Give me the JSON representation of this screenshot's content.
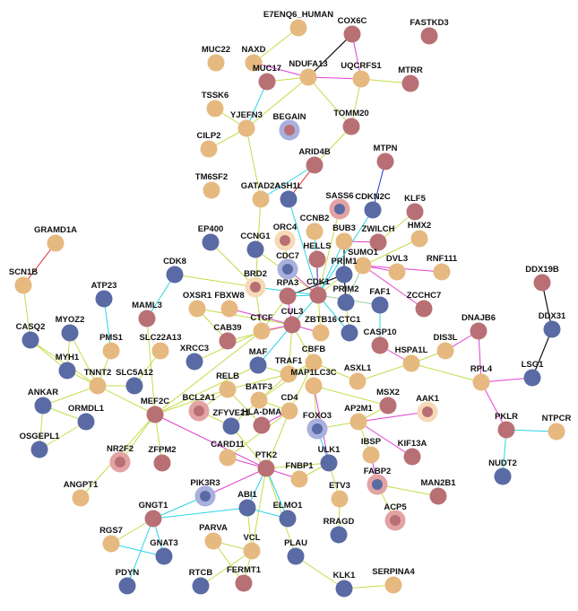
{
  "palette": {
    "tan": "#e6b980",
    "rose": "#b87074",
    "slate": "#5a6aa4",
    "ring_lilac": "#a9b0de",
    "ring_pink": "#e3a3a3",
    "ring_cream": "#f6d9b6",
    "edge_magenta": "#e040d0",
    "edge_cyan": "#2ad4e6",
    "edge_lime": "#c4dc4a",
    "edge_black": "#111111",
    "edge_red": "#dc2222",
    "edge_blue": "#2233cc",
    "edge_sage": "#9ecf9e"
  },
  "nodes": [
    {
      "id": "E7ENQ6_HUMAN",
      "label": "E7ENQ6_HUMAN",
      "color": "tan"
    },
    {
      "id": "COX6C",
      "label": "COX6C",
      "color": "rose"
    },
    {
      "id": "FASTKD3",
      "label": "FASTKD3",
      "color": "rose"
    },
    {
      "id": "NAXD",
      "label": "NAXD",
      "color": "tan"
    },
    {
      "id": "MUC22",
      "label": "MUC22",
      "color": "tan"
    },
    {
      "id": "MUC17",
      "label": "MUC17",
      "color": "rose"
    },
    {
      "id": "NDUFA13",
      "label": "NDUFA13",
      "color": "tan"
    },
    {
      "id": "UQCRFS1",
      "label": "UQCRFS1",
      "color": "tan"
    },
    {
      "id": "MTRR",
      "label": "MTRR",
      "color": "rose"
    },
    {
      "id": "TSSK6",
      "label": "TSSK6",
      "color": "tan"
    },
    {
      "id": "YJEFN3",
      "label": "YJEFN3",
      "color": "tan"
    },
    {
      "id": "BEGAIN",
      "label": "BEGAIN",
      "color": "rose",
      "ring": "ring_lilac"
    },
    {
      "id": "TOMM20",
      "label": "TOMM20",
      "color": "rose"
    },
    {
      "id": "CILP2",
      "label": "CILP2",
      "color": "tan"
    },
    {
      "id": "ARID4B",
      "label": "ARID4B",
      "color": "rose"
    },
    {
      "id": "MTPN",
      "label": "MTPN",
      "color": "rose"
    },
    {
      "id": "TM6SF2",
      "label": "TM6SF2",
      "color": "tan"
    },
    {
      "id": "GATAD2A",
      "label": "GATAD2A",
      "color": "tan"
    },
    {
      "id": "ASH1L",
      "label": "ASH1L",
      "color": "slate"
    },
    {
      "id": "SASS6",
      "label": "SASS6",
      "color": "slate",
      "ring": "ring_pink"
    },
    {
      "id": "CDKN2C",
      "label": "CDKN2C",
      "color": "slate"
    },
    {
      "id": "KLF5",
      "label": "KLF5",
      "color": "rose"
    },
    {
      "id": "GRAMD1A",
      "label": "GRAMD1A",
      "color": "tan"
    },
    {
      "id": "EP400",
      "label": "EP400",
      "color": "slate"
    },
    {
      "id": "CCNG1",
      "label": "CCNG1",
      "color": "slate"
    },
    {
      "id": "ORC4",
      "label": "ORC4",
      "color": "rose",
      "ring": "ring_cream"
    },
    {
      "id": "CCNB2",
      "label": "CCNB2",
      "color": "tan"
    },
    {
      "id": "BUB3",
      "label": "BUB3",
      "color": "tan"
    },
    {
      "id": "ZWILCH",
      "label": "ZWILCH",
      "color": "rose"
    },
    {
      "id": "HMX2",
      "label": "HMX2",
      "color": "tan"
    },
    {
      "id": "HELLS",
      "label": "HELLS",
      "color": "rose"
    },
    {
      "id": "SCN1B",
      "label": "SCN1B",
      "color": "tan"
    },
    {
      "id": "CDC7",
      "label": "CDC7",
      "color": "slate",
      "ring": "ring_lilac"
    },
    {
      "id": "SUMO1",
      "label": "SUMO1",
      "color": "tan"
    },
    {
      "id": "DVL3",
      "label": "DVL3",
      "color": "tan"
    },
    {
      "id": "RNF111",
      "label": "RNF111",
      "color": "tan"
    },
    {
      "id": "DDX19B",
      "label": "DDX19B",
      "color": "rose"
    },
    {
      "id": "CDK8",
      "label": "CDK8",
      "color": "slate"
    },
    {
      "id": "BRD2",
      "label": "BRD2",
      "color": "rose",
      "ring": "ring_cream"
    },
    {
      "id": "PRIM1",
      "label": "PRIM1",
      "color": "slate"
    },
    {
      "id": "ATP23",
      "label": "ATP23",
      "color": "slate"
    },
    {
      "id": "RPA3",
      "label": "RPA3",
      "color": "rose"
    },
    {
      "id": "CDK1",
      "label": "CDK1",
      "color": "rose"
    },
    {
      "id": "PRIM2",
      "label": "PRIM2",
      "color": "slate"
    },
    {
      "id": "FAF1",
      "label": "FAF1",
      "color": "slate"
    },
    {
      "id": "MAML3",
      "label": "MAML3",
      "color": "rose"
    },
    {
      "id": "OXSR1",
      "label": "OXSR1",
      "color": "tan"
    },
    {
      "id": "FBXW8",
      "label": "FBXW8",
      "color": "tan"
    },
    {
      "id": "ZCCHC7",
      "label": "ZCCHC7",
      "color": "rose"
    },
    {
      "id": "DDX31",
      "label": "DDX31",
      "color": "slate"
    },
    {
      "id": "CASQ2",
      "label": "CASQ2",
      "color": "slate"
    },
    {
      "id": "MYOZ2",
      "label": "MYOZ2",
      "color": "slate"
    },
    {
      "id": "CUL3",
      "label": "CUL3",
      "color": "rose"
    },
    {
      "id": "ZBTB16",
      "label": "ZBTB16",
      "color": "tan"
    },
    {
      "id": "CTC1",
      "label": "CTC1",
      "color": "slate"
    },
    {
      "id": "DNAJB6",
      "label": "DNAJB6",
      "color": "rose"
    },
    {
      "id": "PMS1",
      "label": "PMS1",
      "color": "tan"
    },
    {
      "id": "SLC22A13",
      "label": "SLC22A13",
      "color": "tan"
    },
    {
      "id": "CAB39",
      "label": "CAB39",
      "color": "rose"
    },
    {
      "id": "CTCF",
      "label": "CTCF",
      "color": "tan"
    },
    {
      "id": "MYH1",
      "label": "MYH1",
      "color": "slate"
    },
    {
      "id": "CASP10",
      "label": "CASP10",
      "color": "rose"
    },
    {
      "id": "DIS3L",
      "label": "DIS3L",
      "color": "tan"
    },
    {
      "id": "XRCC3",
      "label": "XRCC3",
      "color": "slate"
    },
    {
      "id": "MAF",
      "label": "MAF",
      "color": "slate"
    },
    {
      "id": "CBFB",
      "label": "CBFB",
      "color": "tan"
    },
    {
      "id": "HSPA1L",
      "label": "HSPA1L",
      "color": "tan"
    },
    {
      "id": "TNNT2",
      "label": "TNNT2",
      "color": "tan"
    },
    {
      "id": "SLC5A12",
      "label": "SLC5A12",
      "color": "slate"
    },
    {
      "id": "TRAF1",
      "label": "TRAF1",
      "color": "tan"
    },
    {
      "id": "RPL4",
      "label": "RPL4",
      "color": "tan"
    },
    {
      "id": "LSG1",
      "label": "LSG1",
      "color": "slate"
    },
    {
      "id": "ANKAR",
      "label": "ANKAR",
      "color": "slate"
    },
    {
      "id": "RELB",
      "label": "RELB",
      "color": "tan"
    },
    {
      "id": "ASXL1",
      "label": "ASXL1",
      "color": "tan"
    },
    {
      "id": "ORMDL1",
      "label": "ORMDL1",
      "color": "slate"
    },
    {
      "id": "BATF3",
      "label": "BATF3",
      "color": "tan"
    },
    {
      "id": "MAP1LC3C",
      "label": "MAP1LC3C",
      "color": "tan"
    },
    {
      "id": "MSX2",
      "label": "MSX2",
      "color": "rose"
    },
    {
      "id": "MEF2C",
      "label": "MEF2C",
      "color": "rose"
    },
    {
      "id": "BCL2A1",
      "label": "BCL2A1",
      "color": "rose",
      "ring": "ring_pink"
    },
    {
      "id": "CD4",
      "label": "CD4",
      "color": "tan"
    },
    {
      "id": "AAK1",
      "label": "AAK1",
      "color": "rose",
      "ring": "ring_cream"
    },
    {
      "id": "OSGEPL1",
      "label": "OSGEPL1",
      "color": "slate"
    },
    {
      "id": "ZFYVE21",
      "label": "ZFYVE21",
      "color": "slate"
    },
    {
      "id": "HLA-DMA",
      "label": "HLA-DMA",
      "color": "rose"
    },
    {
      "id": "AP2M1",
      "label": "AP2M1",
      "color": "tan"
    },
    {
      "id": "FOXO3",
      "label": "FOXO3",
      "color": "slate",
      "ring": "ring_lilac"
    },
    {
      "id": "PKLR",
      "label": "PKLR",
      "color": "rose"
    },
    {
      "id": "NTPCR",
      "label": "NTPCR",
      "color": "tan"
    },
    {
      "id": "NR2F2",
      "label": "NR2F2",
      "color": "rose",
      "ring": "ring_pink"
    },
    {
      "id": "ZFPM2",
      "label": "ZFPM2",
      "color": "rose"
    },
    {
      "id": "CARD11",
      "label": "CARD11",
      "color": "tan"
    },
    {
      "id": "IBSP",
      "label": "IBSP",
      "color": "tan"
    },
    {
      "id": "KIF13A",
      "label": "KIF13A",
      "color": "rose"
    },
    {
      "id": "ULK1",
      "label": "ULK1",
      "color": "slate"
    },
    {
      "id": "PTK2",
      "label": "PTK2",
      "color": "rose"
    },
    {
      "id": "FNBP1",
      "label": "FNBP1",
      "color": "tan"
    },
    {
      "id": "NUDT2",
      "label": "NUDT2",
      "color": "slate"
    },
    {
      "id": "ANGPT1",
      "label": "ANGPT1",
      "color": "tan"
    },
    {
      "id": "FABP2",
      "label": "FABP2",
      "color": "slate",
      "ring": "ring_pink"
    },
    {
      "id": "PIK3R3",
      "label": "PIK3R3",
      "color": "slate",
      "ring": "ring_lilac"
    },
    {
      "id": "ABI1",
      "label": "ABI1",
      "color": "slate"
    },
    {
      "id": "ETV3",
      "label": "ETV3",
      "color": "tan"
    },
    {
      "id": "MAN2B1",
      "label": "MAN2B1",
      "color": "rose"
    },
    {
      "id": "GNGT1",
      "label": "GNGT1",
      "color": "rose"
    },
    {
      "id": "ELMO1",
      "label": "ELMO1",
      "color": "slate"
    },
    {
      "id": "ACP5",
      "label": "ACP5",
      "color": "rose",
      "ring": "ring_pink"
    },
    {
      "id": "RGS7",
      "label": "RGS7",
      "color": "tan"
    },
    {
      "id": "PARVA",
      "label": "PARVA",
      "color": "tan"
    },
    {
      "id": "RRAGD",
      "label": "RRAGD",
      "color": "slate"
    },
    {
      "id": "GNAT3",
      "label": "GNAT3",
      "color": "slate"
    },
    {
      "id": "VCL",
      "label": "VCL",
      "color": "tan"
    },
    {
      "id": "PLAU",
      "label": "PLAU",
      "color": "slate"
    },
    {
      "id": "PDYN",
      "label": "PDYN",
      "color": "slate"
    },
    {
      "id": "RTCB",
      "label": "RTCB",
      "color": "slate"
    },
    {
      "id": "FERMT1",
      "label": "FERMT1",
      "color": "rose"
    },
    {
      "id": "KLK1",
      "label": "KLK1",
      "color": "slate"
    },
    {
      "id": "SERPINA4",
      "label": "SERPINA4",
      "color": "tan"
    }
  ],
  "edges": [
    [
      "E7ENQ6_HUMAN",
      "NAXD",
      "edge_lime"
    ],
    [
      "NAXD",
      "NDUFA13",
      "edge_magenta"
    ],
    [
      "COX6C",
      "NDUFA13",
      "edge_black"
    ],
    [
      "COX6C",
      "UQCRFS1",
      "edge_magenta"
    ],
    [
      "NDUFA13",
      "UQCRFS1",
      "edge_magenta"
    ],
    [
      "NDUFA13",
      "MUC17",
      "edge_lime"
    ],
    [
      "UQCRFS1",
      "MTRR",
      "edge_lime"
    ],
    [
      "UQCRFS1",
      "TOMM20",
      "edge_lime"
    ],
    [
      "NDUFA13",
      "TOMM20",
      "edge_lime"
    ],
    [
      "NDUFA13",
      "YJEFN3",
      "edge_lime"
    ],
    [
      "YJEFN3",
      "TSSK6",
      "edge_lime"
    ],
    [
      "YJEFN3",
      "MUC17",
      "edge_cyan"
    ],
    [
      "YJEFN3",
      "CILP2",
      "edge_lime"
    ],
    [
      "YJEFN3",
      "GATAD2A",
      "edge_lime"
    ],
    [
      "TOMM20",
      "ARID4B",
      "edge_lime"
    ],
    [
      "ARID4B",
      "ASH1L",
      "edge_red"
    ],
    [
      "ARID4B",
      "GATAD2A",
      "edge_cyan"
    ],
    [
      "MTPN",
      "CDKN2C",
      "edge_blue"
    ],
    [
      "GATAD2A",
      "BRD2",
      "edge_lime"
    ],
    [
      "ASH1L",
      "CDK1",
      "edge_cyan"
    ],
    [
      "GRAMD1A",
      "SCN1B",
      "edge_red"
    ],
    [
      "SCN1B",
      "CASQ2",
      "edge_lime"
    ],
    [
      "CDK8",
      "BRD2",
      "edge_lime"
    ],
    [
      "CDK8",
      "MAML3",
      "edge_cyan"
    ],
    [
      "ATP23",
      "PMS1",
      "edge_cyan"
    ],
    [
      "EP400",
      "BRD2",
      "edge_lime"
    ],
    [
      "CCNG1",
      "CDK1",
      "edge_lime"
    ],
    [
      "ORC4",
      "CDC7",
      "edge_lime"
    ],
    [
      "CDC7",
      "CDK1",
      "edge_magenta"
    ],
    [
      "CCNB2",
      "CDK1",
      "edge_cyan"
    ],
    [
      "BUB3",
      "ZWILCH",
      "edge_magenta"
    ],
    [
      "BUB3",
      "CDK1",
      "edge_cyan"
    ],
    [
      "BUB3",
      "PRIM1",
      "edge_black"
    ],
    [
      "HELLS",
      "CDK1",
      "edge_lime"
    ],
    [
      "SUMO1",
      "PRIM2",
      "edge_sage"
    ],
    [
      "SUMO1",
      "RNF111",
      "edge_magenta"
    ],
    [
      "SUMO1",
      "DVL3",
      "edge_magenta"
    ],
    [
      "SUMO1",
      "HMX2",
      "edge_lime"
    ],
    [
      "SUMO1",
      "ZCCHC7",
      "edge_magenta"
    ],
    [
      "KLF5",
      "ZWILCH",
      "edge_lime"
    ],
    [
      "CDKN2C",
      "CDK1",
      "edge_cyan"
    ],
    [
      "SASS6",
      "CDK1",
      "edge_lime"
    ],
    [
      "PRIM1",
      "PRIM2",
      "edge_black"
    ],
    [
      "PRIM1",
      "RPA3",
      "edge_black"
    ],
    [
      "PRIM1",
      "CDK1",
      "edge_lime"
    ],
    [
      "PRIM2",
      "CTC1",
      "edge_lime"
    ],
    [
      "RPA3",
      "CDK1",
      "edge_cyan"
    ],
    [
      "RPA3",
      "CTCF",
      "edge_lime"
    ],
    [
      "RPA3",
      "CUL3",
      "edge_magenta"
    ],
    [
      "BRD2",
      "CTCF",
      "edge_lime"
    ],
    [
      "BRD2",
      "CDK1",
      "edge_cyan"
    ],
    [
      "CDK1",
      "CUL3",
      "edge_cyan"
    ],
    [
      "CDK1",
      "ZBTB16",
      "edge_lime"
    ],
    [
      "CDK1",
      "CTC1",
      "edge_cyan"
    ],
    [
      "CDK1",
      "FAF1",
      "edge_sage"
    ],
    [
      "CDK1",
      "HELLS",
      "edge_magenta"
    ],
    [
      "FAF1",
      "CASP10",
      "edge_cyan"
    ],
    [
      "CUL3",
      "FBXW8",
      "edge_magenta"
    ],
    [
      "CUL3",
      "ZBTB16",
      "edge_magenta"
    ],
    [
      "CUL3",
      "CAB39",
      "edge_lime"
    ],
    [
      "CUL3",
      "OXSR1",
      "edge_lime"
    ],
    [
      "CUL3",
      "CBFB",
      "edge_lime"
    ],
    [
      "CUL3",
      "MAF",
      "edge_cyan"
    ],
    [
      "CUL3",
      "TRAF1",
      "edge_lime"
    ],
    [
      "CUL3",
      "CTCF",
      "edge_magenta"
    ],
    [
      "CAB39",
      "OXSR1",
      "edge_lime"
    ],
    [
      "CASP10",
      "HSPA1L",
      "edge_magenta"
    ],
    [
      "HSPA1L",
      "DIS3L",
      "edge_lime"
    ],
    [
      "HSPA1L",
      "RPL4",
      "edge_lime"
    ],
    [
      "HSPA1L",
      "ASXL1",
      "edge_lime"
    ],
    [
      "DNAJB6",
      "RPL4",
      "edge_magenta"
    ],
    [
      "DNAJB6",
      "DIS3L",
      "edge_magenta"
    ],
    [
      "DDX19B",
      "DDX31",
      "edge_black"
    ],
    [
      "DDX31",
      "LSG1",
      "edge_black"
    ],
    [
      "LSG1",
      "RPL4",
      "edge_magenta"
    ],
    [
      "RPL4",
      "PKLR",
      "edge_magenta"
    ],
    [
      "PKLR",
      "NTPCR",
      "edge_cyan"
    ],
    [
      "PKLR",
      "NUDT2",
      "edge_cyan"
    ],
    [
      "MYOZ2",
      "MYH1",
      "edge_lime"
    ],
    [
      "CASQ2",
      "MYH1",
      "edge_lime"
    ],
    [
      "CASQ2",
      "TNNT2",
      "edge_lime"
    ],
    [
      "MYH1",
      "TNNT2",
      "edge_lime"
    ],
    [
      "MYOZ2",
      "TNNT2",
      "edge_lime"
    ],
    [
      "PMS1",
      "TNNT2",
      "edge_lime"
    ],
    [
      "TNNT2",
      "MEF2C",
      "edge_lime"
    ],
    [
      "TNNT2",
      "ANKAR",
      "edge_lime"
    ],
    [
      "TNNT2",
      "SLC5A12",
      "edge_lime"
    ],
    [
      "SLC22A13",
      "SLC5A12",
      "edge_lime"
    ],
    [
      "MAML3",
      "MEF2C",
      "edge_lime"
    ],
    [
      "ANKAR",
      "ORMDL1",
      "edge_lime"
    ],
    [
      "ANKAR",
      "OSGEPL1",
      "edge_lime"
    ],
    [
      "ORMDL1",
      "OSGEPL1",
      "edge_lime"
    ],
    [
      "MEF2C",
      "ZFPM2",
      "edge_lime"
    ],
    [
      "MEF2C",
      "NR2F2",
      "edge_lime"
    ],
    [
      "MEF2C",
      "ANGPT1",
      "edge_lime"
    ],
    [
      "MEF2C",
      "PTK2",
      "edge_magenta"
    ],
    [
      "MEF2C",
      "RELB",
      "edge_lime"
    ],
    [
      "MEF2C",
      "MAF",
      "edge_lime"
    ],
    [
      "MEF2C",
      "CTCF",
      "edge_lime"
    ],
    [
      "XRCC3",
      "CTCF",
      "edge_lime"
    ],
    [
      "MAF",
      "TRAF1",
      "edge_lime"
    ],
    [
      "CBFB",
      "TRAF1",
      "edge_lime"
    ],
    [
      "CBFB",
      "BATF3",
      "edge_lime"
    ],
    [
      "CBFB",
      "CD4",
      "edge_lime"
    ],
    [
      "CBFB",
      "ASXL1",
      "edge_lime"
    ],
    [
      "TRAF1",
      "RELB",
      "edge_lime"
    ],
    [
      "TRAF1",
      "BATF3",
      "edge_lime"
    ],
    [
      "RELB",
      "BCL2A1",
      "edge_lime"
    ],
    [
      "RELB",
      "HLA-DMA",
      "edge_lime"
    ],
    [
      "BATF3",
      "CD4",
      "edge_lime"
    ],
    [
      "BATF3",
      "ZFYVE21",
      "edge_lime"
    ],
    [
      "CD4",
      "HLA-DMA",
      "edge_magenta"
    ],
    [
      "CD4",
      "CARD11",
      "edge_lime"
    ],
    [
      "CD4",
      "PTK2",
      "edge_lime"
    ],
    [
      "MAP1LC3C",
      "FOXO3",
      "edge_lime"
    ],
    [
      "MAP1LC3C",
      "ULK1",
      "edge_magenta"
    ],
    [
      "MAP1LC3C",
      "MSX2",
      "edge_lime"
    ],
    [
      "AP2M1",
      "AAK1",
      "edge_magenta"
    ],
    [
      "AP2M1",
      "KIF13A",
      "edge_magenta"
    ],
    [
      "AP2M1",
      "FOXO3",
      "edge_lime"
    ],
    [
      "AP2M1",
      "IBSP",
      "edge_lime"
    ],
    [
      "MSX2",
      "AP2M1",
      "edge_lime"
    ],
    [
      "FOXO3",
      "ULK1",
      "edge_cyan"
    ],
    [
      "ULK1",
      "ETV3",
      "edge_lime"
    ],
    [
      "ULK1",
      "FNBP1",
      "edge_lime"
    ],
    [
      "ULK1",
      "PTK2",
      "edge_lime"
    ],
    [
      "IBSP",
      "FABP2",
      "edge_magenta"
    ],
    [
      "FABP2",
      "ACP5",
      "edge_lime"
    ],
    [
      "FABP2",
      "MAN2B1",
      "edge_lime"
    ],
    [
      "ETV3",
      "RRAGD",
      "edge_lime"
    ],
    [
      "PTK2",
      "PIK3R3",
      "edge_magenta"
    ],
    [
      "PTK2",
      "ABI1",
      "edge_cyan"
    ],
    [
      "PTK2",
      "ELMO1",
      "edge_cyan"
    ],
    [
      "PTK2",
      "VCL",
      "edge_lime"
    ],
    [
      "PTK2",
      "PLAU",
      "edge_lime"
    ],
    [
      "PTK2",
      "FNBP1",
      "edge_magenta"
    ],
    [
      "PTK2",
      "CARD11",
      "edge_magenta"
    ],
    [
      "PTK2",
      "ZFYVE21",
      "edge_lime"
    ],
    [
      "ABI1",
      "ELMO1",
      "edge_cyan"
    ],
    [
      "ABI1",
      "VCL",
      "edge_lime"
    ],
    [
      "ABI1",
      "GNGT1",
      "edge_cyan"
    ],
    [
      "PIK3R3",
      "GNGT1",
      "edge_cyan"
    ],
    [
      "GNGT1",
      "RGS7",
      "edge_lime"
    ],
    [
      "GNGT1",
      "GNAT3",
      "edge_cyan"
    ],
    [
      "GNGT1",
      "PDYN",
      "edge_cyan"
    ],
    [
      "RGS7",
      "GNAT3",
      "edge_cyan"
    ],
    [
      "PARVA",
      "VCL",
      "edge_lime"
    ],
    [
      "PARVA",
      "FERMT1",
      "edge_lime"
    ],
    [
      "VCL",
      "RTCB",
      "edge_lime"
    ],
    [
      "VCL",
      "FERMT1",
      "edge_lime"
    ],
    [
      "PLAU",
      "KLK1",
      "edge_lime"
    ],
    [
      "KLK1",
      "SERPINA4",
      "edge_lime"
    ],
    [
      "ZFYVE21",
      "BCL2A1",
      "edge_lime"
    ]
  ]
}
